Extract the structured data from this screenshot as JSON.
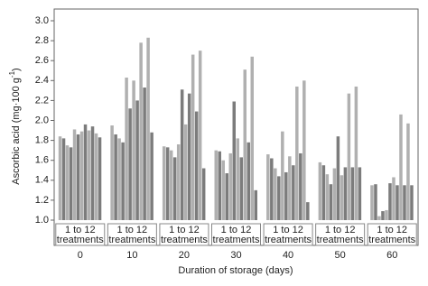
{
  "chart_data": {
    "type": "bar",
    "y_label": "Ascorbic acid (mg·100 g",
    "y_label_sup": "-1",
    "y_label_end": ")",
    "x_label": "Duration of storage (days)",
    "group_label": [
      "1 to 12",
      "treatments"
    ],
    "categories": [
      "0",
      "10",
      "20",
      "30",
      "40",
      "50",
      "60"
    ],
    "colors": [
      "#b0b0b0",
      "#7c7c7c"
    ],
    "series": [
      {
        "values": [
          1.84,
          1.95,
          1.74,
          1.7,
          1.66,
          1.58,
          1.35
        ]
      },
      {
        "values": [
          1.82,
          1.86,
          1.73,
          1.69,
          1.62,
          1.55,
          1.36
        ]
      },
      {
        "values": [
          1.75,
          1.82,
          1.7,
          1.6,
          1.52,
          1.46,
          1.04
        ]
      },
      {
        "values": [
          1.73,
          1.78,
          1.63,
          1.47,
          1.44,
          1.36,
          1.09
        ]
      },
      {
        "values": [
          1.91,
          2.43,
          1.76,
          1.67,
          1.89,
          1.52,
          1.1
        ]
      },
      {
        "values": [
          1.86,
          2.12,
          2.31,
          2.19,
          1.48,
          1.84,
          1.37
        ]
      },
      {
        "values": [
          1.89,
          2.4,
          1.96,
          1.82,
          1.64,
          1.45,
          1.43
        ]
      },
      {
        "values": [
          1.96,
          2.2,
          2.27,
          1.63,
          1.55,
          1.53,
          1.35
        ]
      },
      {
        "values": [
          1.9,
          2.78,
          2.66,
          2.51,
          2.34,
          2.27,
          2.06
        ]
      },
      {
        "values": [
          1.94,
          2.33,
          2.09,
          1.78,
          1.67,
          1.53,
          1.35
        ]
      },
      {
        "values": [
          1.87,
          2.83,
          2.7,
          2.64,
          2.4,
          2.34,
          1.97
        ]
      },
      {
        "values": [
          1.83,
          1.88,
          1.52,
          1.3,
          1.18,
          1.53,
          1.35
        ]
      }
    ],
    "ylim": [
      1.0,
      3.0
    ],
    "yticks": [
      {
        "value": 1.0,
        "label": "1.0"
      },
      {
        "value": 1.2,
        "label": "1.2"
      },
      {
        "value": 1.4,
        "label": "1.4"
      },
      {
        "value": 1.6,
        "label": "1.6"
      },
      {
        "value": 1.8,
        "label": "1.8"
      },
      {
        "value": 2.0,
        "label": "2.0"
      },
      {
        "value": 2.2,
        "label": "2.2"
      },
      {
        "value": 2.4,
        "label": "2.4"
      },
      {
        "value": 2.6,
        "label": "2.6"
      },
      {
        "value": 2.8,
        "label": "2.8"
      },
      {
        "value": 3.0,
        "label": "3.0"
      }
    ]
  }
}
